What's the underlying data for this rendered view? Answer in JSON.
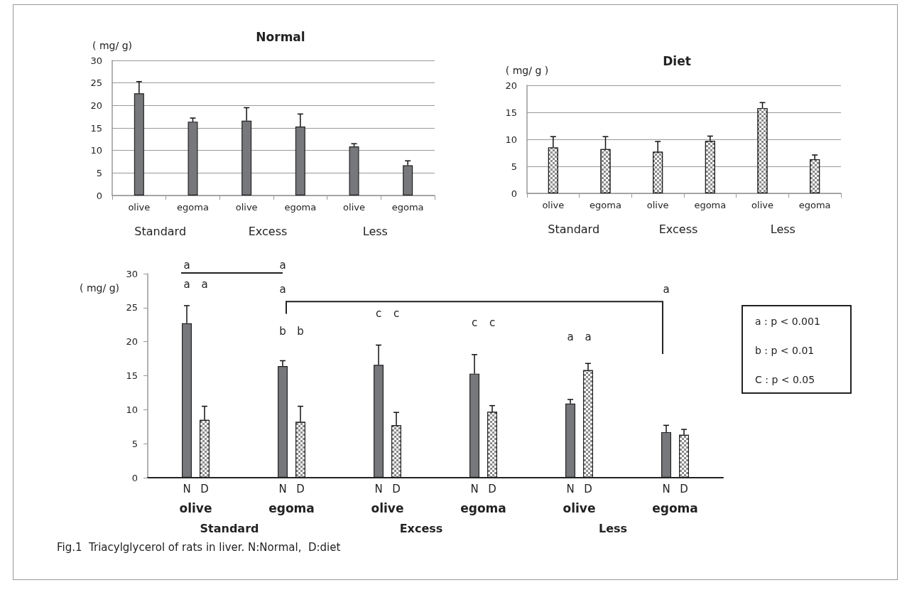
{
  "chart_data": [
    {
      "type": "bar",
      "title": "Normal",
      "ylabel": "( mg/ g)",
      "categories": [
        "olive",
        "egoma",
        "olive",
        "egoma",
        "olive",
        "egoma"
      ],
      "values": [
        22.7,
        16.4,
        16.6,
        15.3,
        10.9,
        6.7
      ],
      "errors": [
        [
          22.7,
          25.3
        ],
        [
          16.4,
          17.2
        ],
        [
          16.6,
          19.5
        ],
        [
          15.3,
          18.1
        ],
        [
          10.9,
          11.5
        ],
        [
          6.7,
          7.7
        ]
      ],
      "color": "#77787b",
      "ylim": [
        0,
        30
      ],
      "yticks": [
        0,
        5,
        10,
        15,
        20,
        25,
        30
      ],
      "grid": "y",
      "annotations": [
        "Standard",
        "Excess",
        "Less"
      ]
    },
    {
      "type": "bar",
      "title": "Diet",
      "ylabel": "( mg/ g )",
      "categories": [
        "olive",
        "egoma",
        "olive",
        "egoma",
        "olive",
        "egoma"
      ],
      "values": [
        8.5,
        8.2,
        7.7,
        9.7,
        15.8,
        6.3
      ],
      "errors": [
        [
          8.5,
          10.5
        ],
        [
          8.2,
          10.5
        ],
        [
          7.7,
          9.6
        ],
        [
          9.7,
          10.6
        ],
        [
          15.8,
          16.8
        ],
        [
          6.3,
          7.1
        ]
      ],
      "color": "#8c8c8c",
      "ylim": [
        0,
        20
      ],
      "yticks": [
        0,
        5,
        10,
        15,
        20
      ],
      "grid": "y",
      "annotations": [
        "Standard",
        "Excess",
        "Less"
      ]
    },
    {
      "type": "bar",
      "ylabel": "( mg/ g)",
      "categories": [
        "olive",
        "egoma",
        "olive",
        "egoma",
        "olive",
        "egoma"
      ],
      "series": [
        {
          "name": "N",
          "color": "#77787b",
          "values": [
            22.7,
            16.4,
            16.6,
            15.3,
            10.9,
            6.7
          ],
          "errors": [
            [
              22.7,
              25.3
            ],
            [
              16.4,
              17.2
            ],
            [
              16.6,
              19.5
            ],
            [
              15.3,
              18.1
            ],
            [
              10.9,
              11.5
            ],
            [
              6.7,
              7.7
            ]
          ]
        },
        {
          "name": "D",
          "color": "#8c8c8c",
          "values": [
            8.5,
            8.2,
            7.7,
            9.7,
            15.8,
            6.3
          ],
          "errors": [
            [
              8.5,
              10.5
            ],
            [
              8.2,
              10.5
            ],
            [
              7.7,
              9.6
            ],
            [
              9.7,
              10.6
            ],
            [
              15.8,
              16.8
            ],
            [
              6.3,
              7.1
            ]
          ]
        }
      ],
      "ylim": [
        0,
        30
      ],
      "yticks": [
        0,
        5,
        10,
        15,
        20,
        25,
        30
      ],
      "grid": false,
      "annotations": [
        "Standard",
        "Excess",
        "Less",
        "a",
        "a",
        "a",
        "a",
        "a",
        "a",
        "b",
        "b",
        "c",
        "c",
        "c",
        "c",
        "a",
        "a",
        "a : p < 0.001",
        "b : p < 0.01",
        "C : p < 0.05",
        "Fig.1  Triacylglycerol of rats in liver. N:Normal,  D:diet"
      ]
    }
  ]
}
